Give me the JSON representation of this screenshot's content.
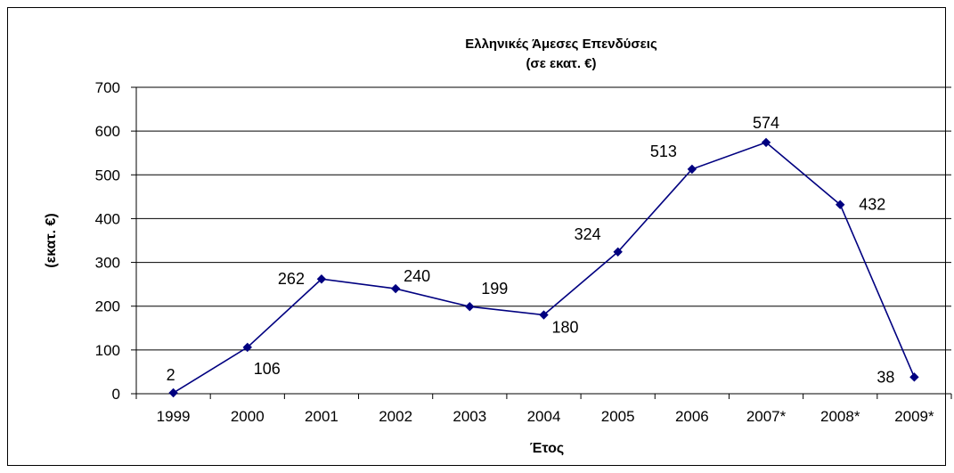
{
  "chart_data": {
    "type": "line",
    "title": "Ελληνικές Άμεσες Επενδύσεις",
    "subtitle": "(σε εκατ. €)",
    "xlabel": "Έτος",
    "ylabel": "(εκατ. €)",
    "categories": [
      "1999",
      "2000",
      "2001",
      "2002",
      "2003",
      "2004",
      "2005",
      "2006",
      "2007*",
      "2008*",
      "2009*"
    ],
    "series": [
      {
        "values": [
          2,
          106,
          262,
          240,
          199,
          180,
          324,
          513,
          574,
          432,
          38
        ],
        "color": "#000080"
      }
    ],
    "data_labels": [
      "2",
      "106",
      "262",
      "240",
      "199",
      "180",
      "324",
      "513",
      "574",
      "432",
      "38"
    ],
    "ylim": [
      0,
      700
    ],
    "yticks": [
      0,
      100,
      200,
      300,
      400,
      500,
      600,
      700
    ],
    "grid": true,
    "legend": "none"
  }
}
